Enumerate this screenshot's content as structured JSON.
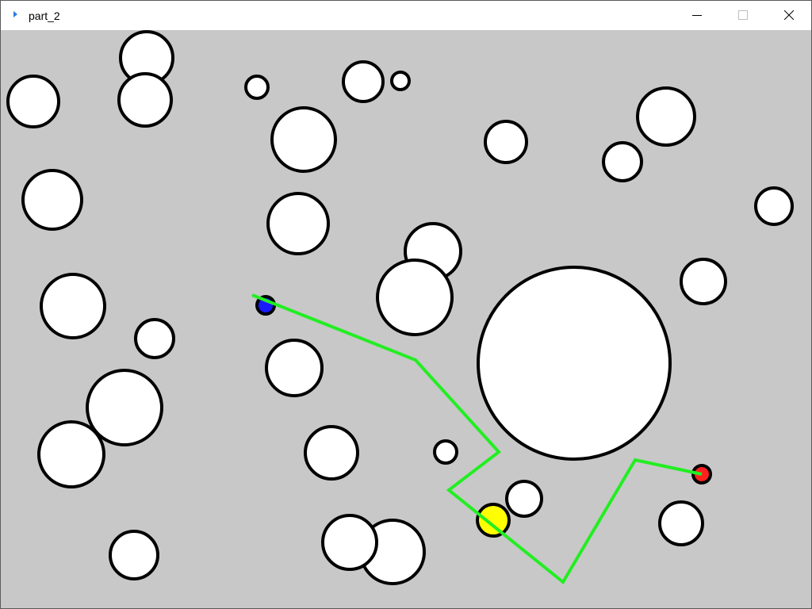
{
  "window": {
    "title": "part_2",
    "controls": {
      "minimize": "minimize",
      "maximize": "maximize",
      "close": "close"
    }
  },
  "scene": {
    "colors": {
      "background": "#c8c8c8",
      "obstacle_fill": "#ffffff",
      "outline": "#000000",
      "path": "#22ee22",
      "start_marker": "#1a1aff",
      "goal_marker": "#ff2020",
      "agent": "#ffff00"
    }
  }
}
